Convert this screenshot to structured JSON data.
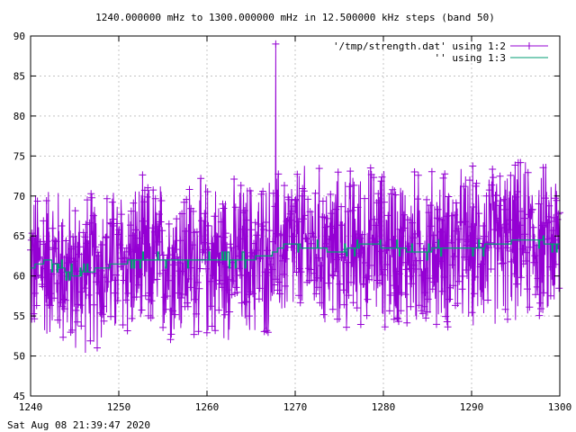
{
  "chart_data": {
    "type": "line",
    "title": "1240.000000 mHz to 1300.000000 mHz in 12.500000 kHz steps (band 50)",
    "timestamp": "Sat Aug 08 21:39:47 2020",
    "xlabel": "",
    "ylabel": "",
    "xlim": [
      1240,
      1300
    ],
    "ylim": [
      45,
      90
    ],
    "x_ticks": [
      "1240",
      "1250",
      "1260",
      "1270",
      "1280",
      "1290",
      "1300"
    ],
    "y_ticks": [
      "45",
      "50",
      "55",
      "60",
      "65",
      "70",
      "75",
      "80",
      "85",
      "90"
    ],
    "grid": true,
    "legend_position": "top-right",
    "colors": {
      "series1": "#9400d3",
      "series2": "#009e73"
    },
    "series": [
      {
        "name": "'/tmp/strength.dat' using 1:2",
        "style": "linespoints",
        "noise_range": [
          49,
          76
        ],
        "spike": {
          "x": 1267.8,
          "y": 89
        },
        "points": 4801
      },
      {
        "name": "'' using 1:3",
        "style": "line",
        "x": [
          1240,
          1242,
          1245,
          1248,
          1252,
          1256,
          1260,
          1264,
          1267,
          1269,
          1272,
          1275,
          1278,
          1281,
          1284,
          1287,
          1290,
          1293,
          1296,
          1300
        ],
        "y": [
          61,
          62,
          60,
          61,
          62,
          62,
          62,
          62,
          62.5,
          64,
          63.5,
          63,
          64,
          63.5,
          63,
          63.5,
          63.5,
          64,
          64.5,
          64
        ]
      }
    ]
  }
}
